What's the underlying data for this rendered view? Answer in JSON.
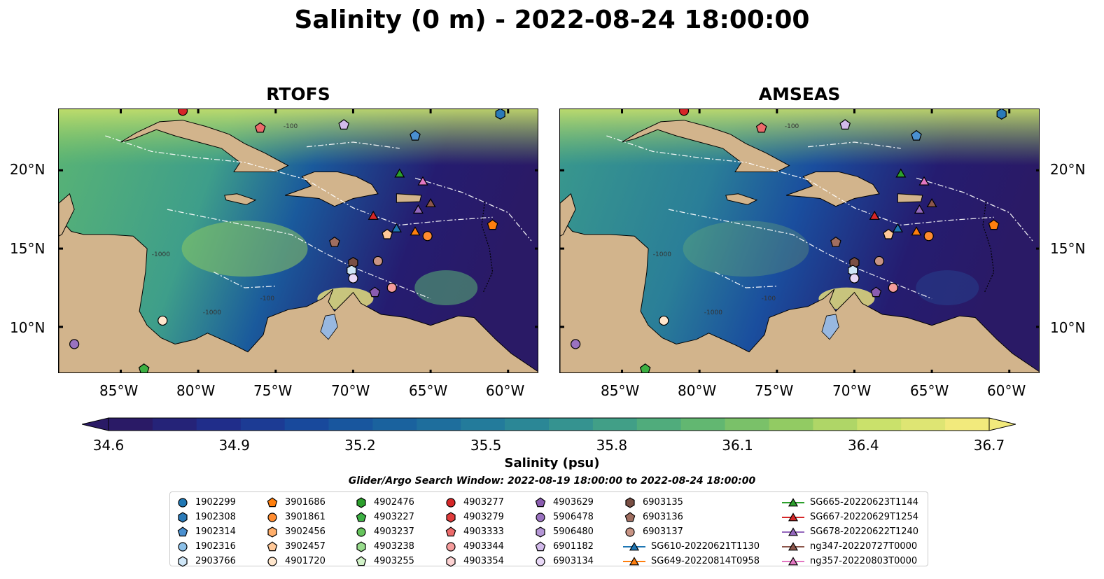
{
  "title": "Salinity (0 m) - 2022-08-24 18:00:00",
  "panels": [
    {
      "title": "RTOFS"
    },
    {
      "title": "AMSEAS"
    }
  ],
  "lat_ticks": [
    "20°N",
    "15°N",
    "10°N"
  ],
  "lon_ticks": [
    "85°W",
    "80°W",
    "75°W",
    "70°W",
    "65°W",
    "60°W"
  ],
  "contour_labels": [
    "-100",
    "-1000",
    "-100",
    "-1000"
  ],
  "colorbar": {
    "label": "Salinity (psu)",
    "ticks": [
      "34.6",
      "34.9",
      "35.2",
      "35.5",
      "35.8",
      "36.1",
      "36.4",
      "36.7"
    ],
    "min": 34.6,
    "max": 36.7,
    "colors": [
      "#2a1a66",
      "#1f2e8c",
      "#174c9e",
      "#1a669e",
      "#26809a",
      "#3a9a8c",
      "#5ab474",
      "#8cc962",
      "#c8e06a",
      "#f2ea7c"
    ]
  },
  "search_window": "Glider/Argo Search Window: 2022-08-19 18:00:00 to 2022-08-24 18:00:00",
  "legend": [
    [
      {
        "label": "1902299",
        "marker": "circle",
        "color": "#1f77b4"
      },
      {
        "label": "1902308",
        "marker": "hexagon",
        "color": "#2a7ab8"
      },
      {
        "label": "1902314",
        "marker": "pentagon",
        "color": "#4a90d0"
      },
      {
        "label": "1902316",
        "marker": "circle",
        "color": "#8cc0e8"
      },
      {
        "label": "2903766",
        "marker": "hexagon",
        "color": "#cfe6f7"
      }
    ],
    [
      {
        "label": "3901686",
        "marker": "pentagon",
        "color": "#ff7f0e"
      },
      {
        "label": "3901861",
        "marker": "circle",
        "color": "#ff8c30"
      },
      {
        "label": "3902456",
        "marker": "hexagon",
        "color": "#ffae6a"
      },
      {
        "label": "3902457",
        "marker": "pentagon",
        "color": "#ffc898"
      },
      {
        "label": "4901720",
        "marker": "circle",
        "color": "#ffe6cc"
      }
    ],
    [
      {
        "label": "4902476",
        "marker": "hexagon",
        "color": "#2ca02c"
      },
      {
        "label": "4903227",
        "marker": "pentagon",
        "color": "#3cb043"
      },
      {
        "label": "4903237",
        "marker": "circle",
        "color": "#66c45c"
      },
      {
        "label": "4903238",
        "marker": "hexagon",
        "color": "#98dc8c"
      },
      {
        "label": "4903255",
        "marker": "pentagon",
        "color": "#d2f2c8"
      }
    ],
    [
      {
        "label": "4903277",
        "marker": "circle",
        "color": "#d62728"
      },
      {
        "label": "4903279",
        "marker": "hexagon",
        "color": "#e03c3c"
      },
      {
        "label": "4903333",
        "marker": "pentagon",
        "color": "#ec6a6a"
      },
      {
        "label": "4903344",
        "marker": "circle",
        "color": "#f59c9c"
      },
      {
        "label": "4903354",
        "marker": "hexagon",
        "color": "#fcd2d2"
      }
    ],
    [
      {
        "label": "4903629",
        "marker": "pentagon",
        "color": "#8a5cb0"
      },
      {
        "label": "5906478",
        "marker": "circle",
        "color": "#9a72c0"
      },
      {
        "label": "5906480",
        "marker": "hexagon",
        "color": "#b496d6"
      },
      {
        "label": "6901182",
        "marker": "pentagon",
        "color": "#d2baea"
      },
      {
        "label": "6903134",
        "marker": "circle",
        "color": "#e8d8f6"
      }
    ],
    [
      {
        "label": "6903135",
        "marker": "hexagon",
        "color": "#7a4f44"
      },
      {
        "label": "6903136",
        "marker": "pentagon",
        "color": "#a06e60"
      },
      {
        "label": "6903137",
        "marker": "circle",
        "color": "#c89484"
      },
      {
        "label": "SG610-20220621T1130",
        "marker": "triangle",
        "color": "#1f77b4"
      },
      {
        "label": "SG649-20220814T0958",
        "marker": "triangle",
        "color": "#ff7f0e"
      }
    ],
    [
      {
        "label": "SG665-20220623T1144",
        "marker": "triangle",
        "color": "#2ca02c"
      },
      {
        "label": "SG667-20220629T1254",
        "marker": "triangle",
        "color": "#d62728"
      },
      {
        "label": "SG678-20220622T1240",
        "marker": "triangle",
        "color": "#9467bd"
      },
      {
        "label": "ng347-20220727T0000",
        "marker": "triangle",
        "color": "#8c564b"
      },
      {
        "label": "ng357-20220803T0000",
        "marker": "triangle",
        "color": "#e377c2"
      }
    ]
  ],
  "map_markers": [
    {
      "id": "4903277",
      "lon": -81,
      "lat": 23.8,
      "marker": "circle",
      "color": "#d62728"
    },
    {
      "id": "4903333",
      "lon": -76,
      "lat": 22.7,
      "marker": "pentagon",
      "color": "#ec6a6a"
    },
    {
      "id": "6901182",
      "lon": -70.6,
      "lat": 22.9,
      "marker": "pentagon",
      "color": "#d2baea"
    },
    {
      "id": "1902314",
      "lon": -66,
      "lat": 22.2,
      "marker": "pentagon",
      "color": "#4a90d0"
    },
    {
      "id": "1902308",
      "lon": -60.5,
      "lat": 23.6,
      "marker": "hexagon",
      "color": "#2a7ab8"
    },
    {
      "id": "SG665",
      "lon": -67,
      "lat": 19.8,
      "marker": "triangle",
      "color": "#2ca02c"
    },
    {
      "id": "ng357",
      "lon": -65.5,
      "lat": 19.3,
      "marker": "triangle",
      "color": "#e377c2"
    },
    {
      "id": "SG678",
      "lon": -65.8,
      "lat": 17.5,
      "marker": "triangle",
      "color": "#9467bd"
    },
    {
      "id": "ng347",
      "lon": -65,
      "lat": 17.9,
      "marker": "triangle",
      "color": "#8c564b"
    },
    {
      "id": "SG667",
      "lon": -68.7,
      "lat": 17.1,
      "marker": "triangle",
      "color": "#d62728"
    },
    {
      "id": "SG610",
      "lon": -67.2,
      "lat": 16.3,
      "marker": "triangle",
      "color": "#1f77b4"
    },
    {
      "id": "SG649",
      "lon": -66,
      "lat": 16.1,
      "marker": "triangle",
      "color": "#ff7f0e"
    },
    {
      "id": "3902457",
      "lon": -67.8,
      "lat": 15.9,
      "marker": "pentagon",
      "color": "#ffc898"
    },
    {
      "id": "3901861",
      "lon": -65.2,
      "lat": 15.8,
      "marker": "circle",
      "color": "#ff8c30"
    },
    {
      "id": "3901686",
      "lon": -61,
      "lat": 16.5,
      "marker": "pentagon",
      "color": "#ff7f0e"
    },
    {
      "id": "6903136",
      "lon": -71.2,
      "lat": 15.4,
      "marker": "pentagon",
      "color": "#a06e60"
    },
    {
      "id": "6903135",
      "lon": -70,
      "lat": 14.1,
      "marker": "hexagon",
      "color": "#7a4f44"
    },
    {
      "id": "6903137",
      "lon": -68.4,
      "lat": 14.2,
      "marker": "circle",
      "color": "#c89484"
    },
    {
      "id": "2903766",
      "lon": -70.1,
      "lat": 13.6,
      "marker": "hexagon",
      "color": "#cfe6f7"
    },
    {
      "id": "6903134",
      "lon": -70,
      "lat": 13.1,
      "marker": "circle",
      "color": "#e8d8f6"
    },
    {
      "id": "4903344",
      "lon": -67.5,
      "lat": 12.5,
      "marker": "circle",
      "color": "#f59c9c"
    },
    {
      "id": "4903629",
      "lon": -68.6,
      "lat": 12.2,
      "marker": "pentagon",
      "color": "#8a5cb0"
    },
    {
      "id": "4901720",
      "lon": -82.3,
      "lat": 10.4,
      "marker": "circle",
      "color": "#ffe6cc"
    },
    {
      "id": "5906478",
      "lon": -88,
      "lat": 8.9,
      "marker": "circle",
      "color": "#9a72c0"
    },
    {
      "id": "4903227",
      "lon": -83.5,
      "lat": 7.3,
      "marker": "pentagon",
      "color": "#3cb043"
    }
  ]
}
